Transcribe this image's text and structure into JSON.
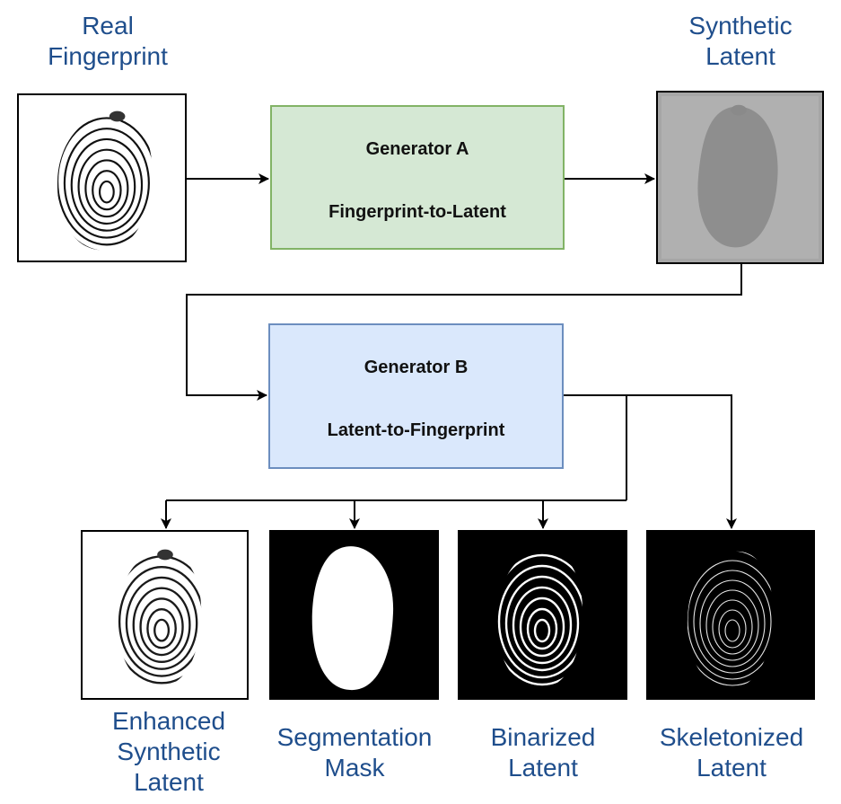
{
  "inputs": {
    "real_fingerprint": [
      "Real",
      "Fingerprint"
    ],
    "synthetic_latent": [
      "Synthetic",
      "Latent"
    ]
  },
  "generators": {
    "a": {
      "name": "Generator A",
      "task": "Fingerprint-to-Latent",
      "fill": "#d5e8d4",
      "border": "#82b366"
    },
    "b": {
      "name": "Generator B",
      "task": "Latent-to-Fingerprint",
      "fill": "#dae8fc",
      "border": "#6c8ebf"
    }
  },
  "outputs": {
    "enhanced": [
      "Enhanced",
      "Synthetic",
      "Latent"
    ],
    "segmentation": [
      "Segmentation",
      "Mask"
    ],
    "binarized": [
      "Binarized",
      "Latent"
    ],
    "skeletonized": [
      "Skeletonized",
      "Latent"
    ]
  },
  "colors": {
    "label_text": "#1f4e8c",
    "arrow": "#000000"
  }
}
